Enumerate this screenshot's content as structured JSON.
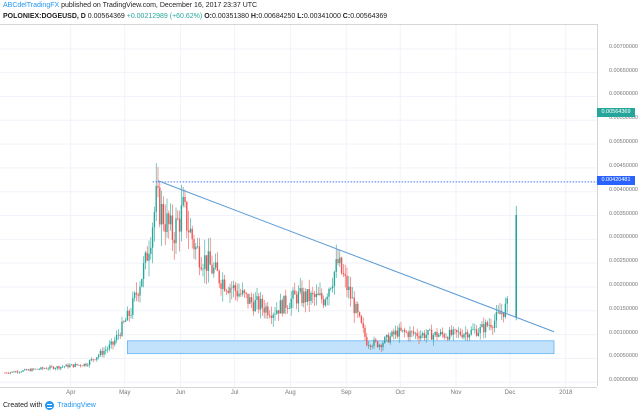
{
  "header": {
    "author": "ABCdelTradingFX",
    "published": "published on TradingView.com, December 16, 2017 23:37 UTC",
    "symbol": "POLONIEX:DOGEUSD, D",
    "last": "0.00564369",
    "change": "+0.00212989 (+60.62%)",
    "o_label": "O:",
    "o_value": "0.00351380",
    "h_label": "H:",
    "h_value": "0.00684250",
    "l_label": "L:",
    "l_value": "0.00341000",
    "c_label": "C:",
    "c_value": "0.00564369"
  },
  "footer": {
    "created_with": "Created with",
    "brand": "TradingView"
  },
  "colors": {
    "up": "#26a69a",
    "down": "#ef5350",
    "trendline": "#5b9bd5",
    "zone_fill": "#bbdefb",
    "zone_border": "#64b5f6",
    "last_price_tag": "#26a69a",
    "level_tag": "#2962ff"
  },
  "chart_data": {
    "type": "candlestick",
    "ylim": [
      -0.0001,
      0.0075
    ],
    "y_ticks": [
      "0.00700000",
      "0.00650000",
      "0.00600000",
      "0.00550000",
      "0.00500000",
      "0.00450000",
      "0.00400000",
      "0.00350000",
      "0.00300000",
      "0.00250000",
      "0.00200000",
      "0.00150000",
      "0.00100000",
      "0.00050000",
      "0.00000000"
    ],
    "x_ticks": [
      "Apr",
      "May",
      "Jun",
      "Jul",
      "Aug",
      "Sep",
      "Oct",
      "Nov",
      "Dec",
      "2018"
    ],
    "last_price_label": "0.00564369",
    "last_price": 0.00564369,
    "level_label": "0.00420481",
    "level": 0.00420481,
    "support_zone": [
      0.0006,
      0.00087
    ],
    "trendline": [
      {
        "x": "May 25",
        "y": 0.00423
      },
      {
        "x": "Dec 31",
        "y": 0.00106
      }
    ],
    "anchors": [
      {
        "x": "Mar 01",
        "y": 0.0002
      },
      {
        "x": "Mar 25",
        "y": 0.0003
      },
      {
        "x": "Apr 15",
        "y": 0.00038
      },
      {
        "x": "Apr 30",
        "y": 0.0008
      },
      {
        "x": "May 10",
        "y": 0.0015
      },
      {
        "x": "May 18",
        "y": 0.0025
      },
      {
        "x": "May 24",
        "y": 0.0038
      },
      {
        "x": "Jun 02",
        "y": 0.0031
      },
      {
        "x": "Jun 08",
        "y": 0.0036
      },
      {
        "x": "Jun 15",
        "y": 0.0028
      },
      {
        "x": "Jun 28",
        "y": 0.0022
      },
      {
        "x": "Jul 15",
        "y": 0.0017
      },
      {
        "x": "Jul 28",
        "y": 0.0015
      },
      {
        "x": "Aug 10",
        "y": 0.0018
      },
      {
        "x": "Aug 25",
        "y": 0.00175
      },
      {
        "x": "Sep 02",
        "y": 0.0025
      },
      {
        "x": "Sep 10",
        "y": 0.0017
      },
      {
        "x": "Sep 18",
        "y": 0.00085
      },
      {
        "x": "Sep 25",
        "y": 0.0008
      },
      {
        "x": "Oct 05",
        "y": 0.00105
      },
      {
        "x": "Oct 20",
        "y": 0.001
      },
      {
        "x": "Nov 05",
        "y": 0.001
      },
      {
        "x": "Nov 20",
        "y": 0.0011
      },
      {
        "x": "Nov 28",
        "y": 0.0013
      },
      {
        "x": "Dec 05",
        "y": 0.0016
      },
      {
        "x": "Dec 10",
        "y": 0.00351
      }
    ]
  }
}
